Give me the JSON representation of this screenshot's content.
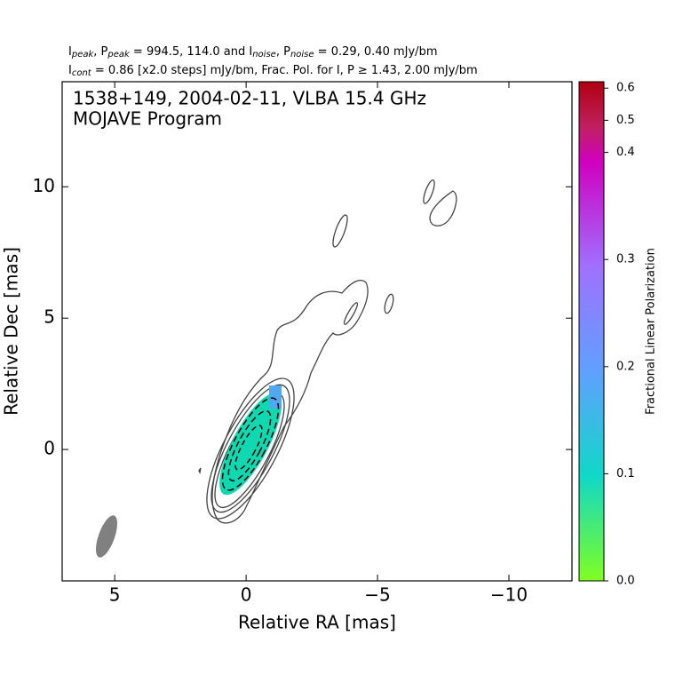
{
  "chart_data": {
    "type": "contour",
    "header": [
      [
        "I",
        "peak",
        ", P",
        "peak",
        " = 994.5, 114.0 and I",
        "noise",
        ", P",
        "noise",
        " = 0.29, 0.40 mJy/bm"
      ],
      [
        "I",
        "cont",
        " = 0.86 [x2.0 steps] mJy/bm, Frac. Pol. for I, P ≥ 1.43, 2.00 mJy/bm"
      ]
    ],
    "title": [
      "1538+149, 2004-02-11, VLBA 15.4 GHz",
      "MOJAVE Program"
    ],
    "xlabel": "Relative RA [mas]",
    "ylabel": "Relative Dec [mas]",
    "xlim": [
      7,
      -12.4
    ],
    "ylim": [
      -5,
      14
    ],
    "xticks": [
      5,
      0,
      {
        "value": -5,
        "label": "−5"
      },
      {
        "value": -10,
        "label": "−10"
      }
    ],
    "yticks": [
      0,
      5,
      10
    ],
    "colorbar": {
      "label": "Fractional Linear Polarization",
      "lim": [
        0,
        0.62
      ],
      "ticks": [
        {
          "value": 0,
          "label": "0.0"
        },
        0.1,
        0.2,
        0.3,
        0.4,
        0.5,
        0.6
      ]
    }
  }
}
